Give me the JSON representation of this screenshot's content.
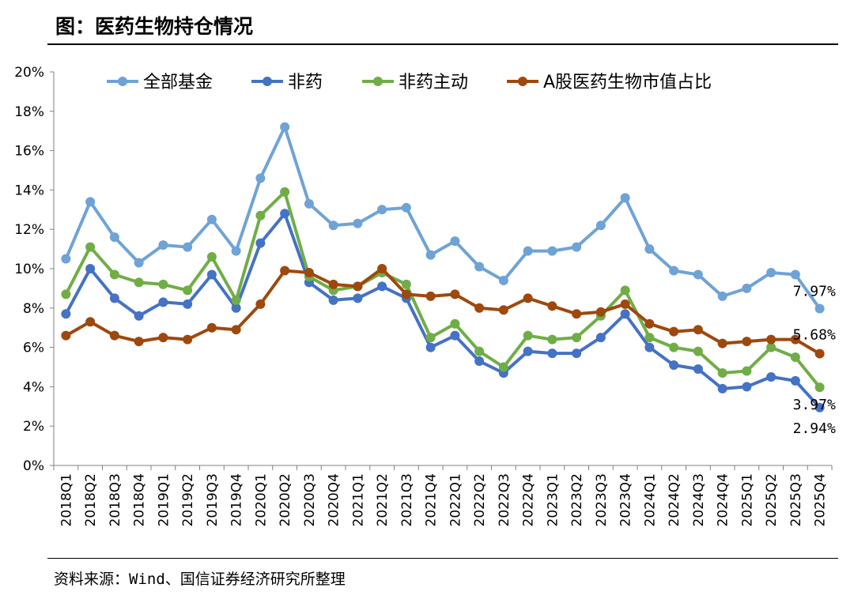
{
  "title": "图：医药生物持仓情况",
  "source": "资料来源：Wind、国信证券经济研究所整理",
  "chart_data": {
    "type": "line",
    "categories": [
      "2018Q1",
      "2018Q2",
      "2018Q3",
      "2018Q4",
      "2019Q1",
      "2019Q2",
      "2019Q3",
      "2019Q4",
      "2020Q1",
      "2020Q2",
      "2020Q3",
      "2020Q4",
      "2021Q1",
      "2021Q2",
      "2021Q3",
      "2021Q4",
      "2022Q1",
      "2022Q2",
      "2022Q3",
      "2022Q4",
      "2023Q1",
      "2023Q2",
      "2023Q3",
      "2023Q4",
      "2024Q1",
      "2024Q2",
      "2024Q3",
      "2024Q4",
      "2025Q1",
      "2025Q2",
      "2025Q3",
      "2025Q4"
    ],
    "y_ticks": [
      "0%",
      "2%",
      "4%",
      "6%",
      "8%",
      "10%",
      "12%",
      "14%",
      "16%",
      "18%",
      "20%"
    ],
    "ylim": [
      0,
      20
    ],
    "legend_position": "top",
    "grid": false,
    "series": [
      {
        "name": "全部基金",
        "color": "#6fa3d6",
        "values": [
          10.5,
          13.4,
          11.6,
          10.3,
          11.2,
          11.1,
          12.5,
          10.9,
          14.6,
          17.2,
          13.3,
          12.2,
          12.3,
          13.0,
          13.1,
          10.7,
          11.4,
          10.1,
          9.4,
          10.9,
          10.9,
          11.1,
          12.2,
          13.6,
          11.0,
          9.9,
          9.7,
          8.6,
          9.0,
          9.8,
          9.7,
          7.97
        ],
        "end_label": "7.97%"
      },
      {
        "name": "非药",
        "color": "#4472c4",
        "values": [
          7.7,
          10.0,
          8.5,
          7.6,
          8.3,
          8.2,
          9.7,
          8.0,
          11.3,
          12.8,
          9.3,
          8.4,
          8.5,
          9.1,
          8.5,
          6.0,
          6.6,
          5.3,
          4.7,
          5.8,
          5.7,
          5.7,
          6.5,
          7.7,
          6.0,
          5.1,
          4.9,
          3.9,
          4.0,
          4.5,
          4.3,
          2.94
        ],
        "end_label": "2.94%"
      },
      {
        "name": "非药主动",
        "color": "#70ad47",
        "values": [
          8.7,
          11.1,
          9.7,
          9.3,
          9.2,
          8.9,
          10.6,
          8.4,
          12.7,
          13.9,
          9.6,
          8.9,
          9.1,
          9.8,
          9.2,
          6.5,
          7.2,
          5.8,
          5.0,
          6.6,
          6.4,
          6.5,
          7.6,
          8.9,
          6.5,
          6.0,
          5.8,
          4.7,
          4.8,
          6.0,
          5.5,
          3.97
        ],
        "end_label": "3.97%"
      },
      {
        "name": "A股医药生物市值占比",
        "color": "#9e480e",
        "values": [
          6.6,
          7.3,
          6.6,
          6.3,
          6.5,
          6.4,
          7.0,
          6.9,
          8.2,
          9.9,
          9.8,
          9.2,
          9.1,
          10.0,
          8.7,
          8.6,
          8.7,
          8.0,
          7.9,
          8.5,
          8.1,
          7.7,
          7.8,
          8.2,
          7.2,
          6.8,
          6.9,
          6.2,
          6.3,
          6.4,
          6.4,
          5.68
        ],
        "end_label": "5.68%"
      }
    ]
  }
}
